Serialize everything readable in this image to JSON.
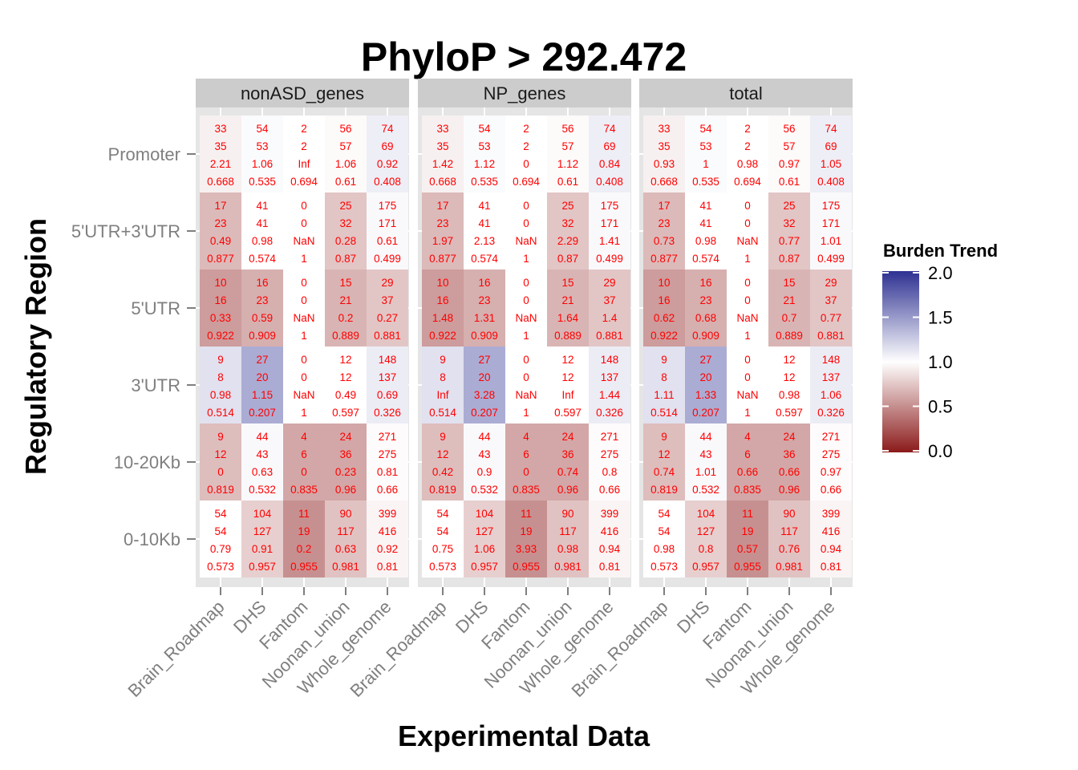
{
  "chart_data": {
    "type": "heatmap",
    "title": "PhyloP > 292.472",
    "xlabel": "Experimental Data",
    "ylabel": "Regulatory Region",
    "x_categories": [
      "Brain_Roadmap",
      "DHS",
      "Fantom",
      "Noonan_union",
      "Whole_genome"
    ],
    "y_categories": [
      "Promoter",
      "5'UTR+3'UTR",
      "5'UTR",
      "3'UTR",
      "10-20Kb",
      "0-10Kb"
    ],
    "legend": {
      "title": "Burden Trend",
      "ticks": [
        "2.0",
        "1.5",
        "1.0",
        "0.5",
        "0.0"
      ],
      "range": [
        0,
        2
      ],
      "low_color": "#8b1a1a",
      "mid_color": "#ffffff",
      "high_color": "#2e3192",
      "midpoint": 1.0
    },
    "panels": [
      {
        "name": "nonASD_genes",
        "rows": [
          [
            [
              "33",
              "35",
              "2.21",
              "0.668"
            ],
            [
              "54",
              "53",
              "1.06",
              "0.535"
            ],
            [
              "2",
              "2",
              "Inf",
              "0.694"
            ],
            [
              "56",
              "57",
              "1.06",
              "0.61"
            ],
            [
              "74",
              "69",
              "0.92",
              "0.408"
            ]
          ],
          [
            [
              "17",
              "23",
              "0.49",
              "0.877"
            ],
            [
              "41",
              "41",
              "0.98",
              "0.574"
            ],
            [
              "0",
              "0",
              "NaN",
              "1"
            ],
            [
              "25",
              "32",
              "0.28",
              "0.87"
            ],
            [
              "175",
              "171",
              "0.61",
              "0.499"
            ]
          ],
          [
            [
              "10",
              "16",
              "0.33",
              "0.922"
            ],
            [
              "16",
              "23",
              "0.59",
              "0.909"
            ],
            [
              "0",
              "0",
              "NaN",
              "1"
            ],
            [
              "15",
              "21",
              "0.2",
              "0.889"
            ],
            [
              "29",
              "37",
              "0.27",
              "0.881"
            ]
          ],
          [
            [
              "9",
              "8",
              "0.98",
              "0.514"
            ],
            [
              "27",
              "20",
              "1.15",
              "0.207"
            ],
            [
              "0",
              "0",
              "NaN",
              "1"
            ],
            [
              "12",
              "12",
              "0.49",
              "0.597"
            ],
            [
              "148",
              "137",
              "0.69",
              "0.326"
            ]
          ],
          [
            [
              "9",
              "12",
              "0",
              "0.819"
            ],
            [
              "44",
              "43",
              "0.63",
              "0.532"
            ],
            [
              "4",
              "6",
              "0",
              "0.835"
            ],
            [
              "24",
              "36",
              "0.23",
              "0.96"
            ],
            [
              "271",
              "275",
              "0.81",
              "0.66"
            ]
          ],
          [
            [
              "54",
              "54",
              "0.79",
              "0.573"
            ],
            [
              "104",
              "127",
              "0.91",
              "0.957"
            ],
            [
              "11",
              "19",
              "0.2",
              "0.955"
            ],
            [
              "90",
              "117",
              "0.63",
              "0.981"
            ],
            [
              "399",
              "416",
              "0.92",
              "0.81"
            ]
          ]
        ]
      },
      {
        "name": "NP_genes",
        "rows": [
          [
            [
              "33",
              "35",
              "1.42",
              "0.668"
            ],
            [
              "54",
              "53",
              "1.12",
              "0.535"
            ],
            [
              "2",
              "2",
              "0",
              "0.694"
            ],
            [
              "56",
              "57",
              "1.12",
              "0.61"
            ],
            [
              "74",
              "69",
              "0.84",
              "0.408"
            ]
          ],
          [
            [
              "17",
              "23",
              "1.97",
              "0.877"
            ],
            [
              "41",
              "41",
              "2.13",
              "0.574"
            ],
            [
              "0",
              "0",
              "NaN",
              "1"
            ],
            [
              "25",
              "32",
              "2.29",
              "0.87"
            ],
            [
              "175",
              "171",
              "1.41",
              "0.499"
            ]
          ],
          [
            [
              "10",
              "16",
              "1.48",
              "0.922"
            ],
            [
              "16",
              "23",
              "1.31",
              "0.909"
            ],
            [
              "0",
              "0",
              "NaN",
              "1"
            ],
            [
              "15",
              "21",
              "1.64",
              "0.889"
            ],
            [
              "29",
              "37",
              "1.4",
              "0.881"
            ]
          ],
          [
            [
              "9",
              "8",
              "Inf",
              "0.514"
            ],
            [
              "27",
              "20",
              "3.28",
              "0.207"
            ],
            [
              "0",
              "0",
              "NaN",
              "1"
            ],
            [
              "12",
              "12",
              "Inf",
              "0.597"
            ],
            [
              "148",
              "137",
              "1.44",
              "0.326"
            ]
          ],
          [
            [
              "9",
              "12",
              "0.42",
              "0.819"
            ],
            [
              "44",
              "43",
              "0.9",
              "0.532"
            ],
            [
              "4",
              "6",
              "0",
              "0.835"
            ],
            [
              "24",
              "36",
              "0.74",
              "0.96"
            ],
            [
              "271",
              "275",
              "0.8",
              "0.66"
            ]
          ],
          [
            [
              "54",
              "54",
              "0.75",
              "0.573"
            ],
            [
              "104",
              "127",
              "1.06",
              "0.957"
            ],
            [
              "11",
              "19",
              "3.93",
              "0.955"
            ],
            [
              "90",
              "117",
              "0.98",
              "0.981"
            ],
            [
              "399",
              "416",
              "0.94",
              "0.81"
            ]
          ]
        ]
      },
      {
        "name": "total",
        "rows": [
          [
            [
              "33",
              "35",
              "0.93",
              "0.668"
            ],
            [
              "54",
              "53",
              "1",
              "0.535"
            ],
            [
              "2",
              "2",
              "0.98",
              "0.694"
            ],
            [
              "56",
              "57",
              "0.97",
              "0.61"
            ],
            [
              "74",
              "69",
              "1.05",
              "0.408"
            ]
          ],
          [
            [
              "17",
              "23",
              "0.73",
              "0.877"
            ],
            [
              "41",
              "41",
              "0.98",
              "0.574"
            ],
            [
              "0",
              "0",
              "NaN",
              "1"
            ],
            [
              "25",
              "32",
              "0.77",
              "0.87"
            ],
            [
              "175",
              "171",
              "1.01",
              "0.499"
            ]
          ],
          [
            [
              "10",
              "16",
              "0.62",
              "0.922"
            ],
            [
              "16",
              "23",
              "0.68",
              "0.909"
            ],
            [
              "0",
              "0",
              "NaN",
              "1"
            ],
            [
              "15",
              "21",
              "0.7",
              "0.889"
            ],
            [
              "29",
              "37",
              "0.77",
              "0.881"
            ]
          ],
          [
            [
              "9",
              "8",
              "1.11",
              "0.514"
            ],
            [
              "27",
              "20",
              "1.33",
              "0.207"
            ],
            [
              "0",
              "0",
              "NaN",
              "1"
            ],
            [
              "12",
              "12",
              "0.98",
              "0.597"
            ],
            [
              "148",
              "137",
              "1.06",
              "0.326"
            ]
          ],
          [
            [
              "9",
              "12",
              "0.74",
              "0.819"
            ],
            [
              "44",
              "43",
              "1.01",
              "0.532"
            ],
            [
              "4",
              "6",
              "0.66",
              "0.835"
            ],
            [
              "24",
              "36",
              "0.66",
              "0.96"
            ],
            [
              "271",
              "275",
              "0.97",
              "0.66"
            ]
          ],
          [
            [
              "54",
              "54",
              "0.98",
              "0.573"
            ],
            [
              "104",
              "127",
              "0.8",
              "0.957"
            ],
            [
              "11",
              "19",
              "0.57",
              "0.955"
            ],
            [
              "90",
              "117",
              "0.76",
              "0.981"
            ],
            [
              "399",
              "416",
              "0.94",
              "0.81"
            ]
          ]
        ]
      }
    ]
  }
}
